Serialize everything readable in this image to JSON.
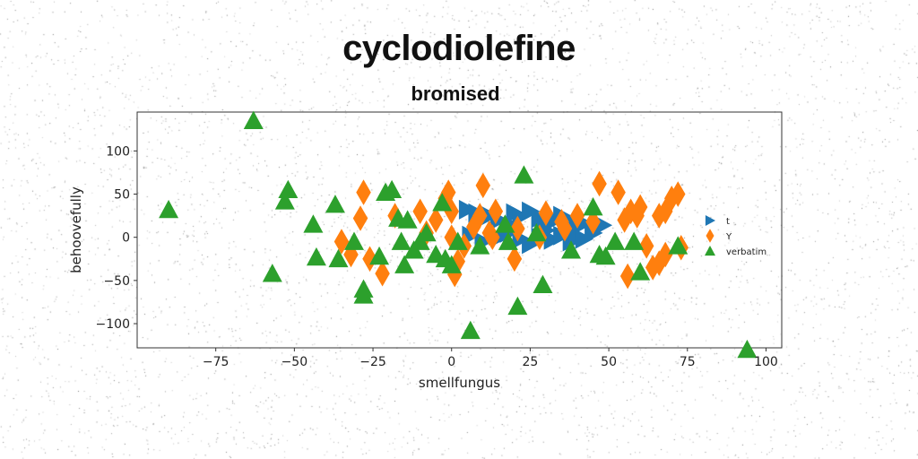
{
  "chart_data": {
    "type": "scatter",
    "title": "cyclodiolefine",
    "subtitle": "bromised",
    "xlabel": "smellfungus",
    "ylabel": "behoovefully",
    "xlim": [
      -100,
      105
    ],
    "ylim": [
      -128,
      145
    ],
    "xticks": [
      -75,
      -50,
      -25,
      0,
      25,
      50,
      75,
      100
    ],
    "xtick_labels": [
      "−75",
      "−50",
      "−25",
      "0",
      "25",
      "50",
      "75",
      "100"
    ],
    "yticks": [
      -100,
      -50,
      0,
      50,
      100
    ],
    "ytick_labels": [
      "−100",
      "−50",
      "0",
      "50",
      "100"
    ],
    "grid": false,
    "legend_position": "right",
    "series": [
      {
        "name": "t",
        "marker": "triangle-right",
        "color": "#1f77b4",
        "points": [
          [
            5,
            32
          ],
          [
            8,
            28
          ],
          [
            12,
            25
          ],
          [
            15,
            20
          ],
          [
            20,
            28
          ],
          [
            22,
            24
          ],
          [
            25,
            30
          ],
          [
            28,
            22
          ],
          [
            30,
            15
          ],
          [
            33,
            20
          ],
          [
            35,
            25
          ],
          [
            38,
            18
          ],
          [
            40,
            12
          ],
          [
            42,
            16
          ],
          [
            45,
            10
          ],
          [
            48,
            14
          ],
          [
            6,
            2
          ],
          [
            10,
            -5
          ],
          [
            15,
            0
          ],
          [
            18,
            5
          ],
          [
            22,
            -2
          ],
          [
            25,
            -8
          ],
          [
            28,
            0
          ],
          [
            32,
            -3
          ],
          [
            35,
            2
          ],
          [
            38,
            -5
          ],
          [
            40,
            0
          ],
          [
            42,
            -2
          ],
          [
            45,
            5
          ],
          [
            30,
            8
          ],
          [
            20,
            12
          ]
        ]
      },
      {
        "name": "Y",
        "marker": "diamond",
        "color": "#ff7f0e",
        "points": [
          [
            -28,
            52
          ],
          [
            -29,
            22
          ],
          [
            -35,
            -5
          ],
          [
            -32,
            -20
          ],
          [
            -26,
            -25
          ],
          [
            -22,
            -42
          ],
          [
            -18,
            25
          ],
          [
            -10,
            30
          ],
          [
            -8,
            5
          ],
          [
            -5,
            20
          ],
          [
            -2,
            45
          ],
          [
            -1,
            52
          ],
          [
            0,
            30
          ],
          [
            0,
            0
          ],
          [
            2,
            -28
          ],
          [
            1,
            -43
          ],
          [
            4,
            -10
          ],
          [
            7,
            12
          ],
          [
            9,
            25
          ],
          [
            10,
            60
          ],
          [
            12,
            5
          ],
          [
            13,
            0
          ],
          [
            14,
            30
          ],
          [
            20,
            -25
          ],
          [
            21,
            10
          ],
          [
            28,
            0
          ],
          [
            30,
            28
          ],
          [
            35,
            18
          ],
          [
            40,
            25
          ],
          [
            45,
            18
          ],
          [
            47,
            62
          ],
          [
            53,
            52
          ],
          [
            55,
            20
          ],
          [
            57,
            30
          ],
          [
            59,
            25
          ],
          [
            56,
            -45
          ],
          [
            60,
            35
          ],
          [
            62,
            -10
          ],
          [
            66,
            25
          ],
          [
            68,
            30
          ],
          [
            72,
            50
          ],
          [
            64,
            -35
          ],
          [
            66,
            -30
          ],
          [
            68,
            -20
          ],
          [
            70,
            45
          ],
          [
            73,
            -12
          ],
          [
            36,
            10
          ]
        ]
      },
      {
        "name": "verbatim",
        "marker": "triangle",
        "color": "#2ca02c",
        "points": [
          [
            -90,
            32
          ],
          [
            -63,
            135
          ],
          [
            -57,
            -42
          ],
          [
            -53,
            42
          ],
          [
            -52,
            55
          ],
          [
            -44,
            15
          ],
          [
            -43,
            -23
          ],
          [
            -37,
            38
          ],
          [
            -36,
            -25
          ],
          [
            -31,
            -5
          ],
          [
            -28,
            -60
          ],
          [
            -28,
            -67
          ],
          [
            -23,
            -22
          ],
          [
            -21,
            52
          ],
          [
            -19,
            55
          ],
          [
            -17,
            22
          ],
          [
            -16,
            -5
          ],
          [
            -15,
            -32
          ],
          [
            -14,
            20
          ],
          [
            -12,
            -15
          ],
          [
            -10,
            -5
          ],
          [
            -8,
            5
          ],
          [
            -5,
            -20
          ],
          [
            -3,
            40
          ],
          [
            -2,
            -25
          ],
          [
            0,
            -32
          ],
          [
            2,
            -5
          ],
          [
            6,
            -108
          ],
          [
            9,
            -10
          ],
          [
            17,
            15
          ],
          [
            18,
            -5
          ],
          [
            21,
            -80
          ],
          [
            23,
            72
          ],
          [
            27,
            5
          ],
          [
            29,
            -55
          ],
          [
            38,
            -15
          ],
          [
            45,
            35
          ],
          [
            47,
            -20
          ],
          [
            49,
            -22
          ],
          [
            52,
            -5
          ],
          [
            58,
            -5
          ],
          [
            60,
            -40
          ],
          [
            72,
            -10
          ],
          [
            94,
            -130
          ]
        ]
      }
    ]
  }
}
